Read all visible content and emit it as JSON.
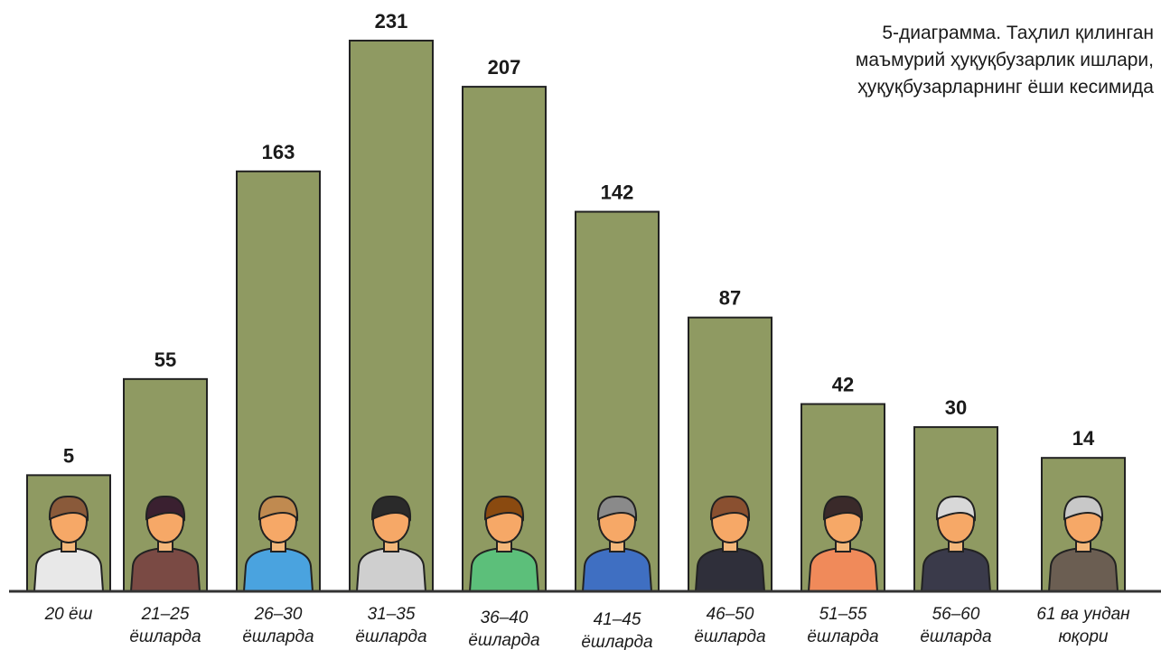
{
  "chart_data": {
    "type": "bar",
    "title": "5-диаграмма. Таҳлил қилинган\nмаъмурий ҳуқуқбузарлик ишлари,\nҳуқуқбузарларнинг ёши кесимида",
    "categories": [
      "20 ёш",
      "21–25\nёшларда",
      "26–30\nёшларда",
      "31–35\nёшларда",
      "36–40\nёшларда",
      "41–45\nёшларда",
      "46–50\nёшларда",
      "51–55\nёшларда",
      "56–60\nёшларда",
      "61 ва ундан\nюқори"
    ],
    "values": [
      5,
      55,
      163,
      231,
      207,
      142,
      87,
      42,
      30,
      14
    ],
    "color": "#8f9a62"
  }
}
